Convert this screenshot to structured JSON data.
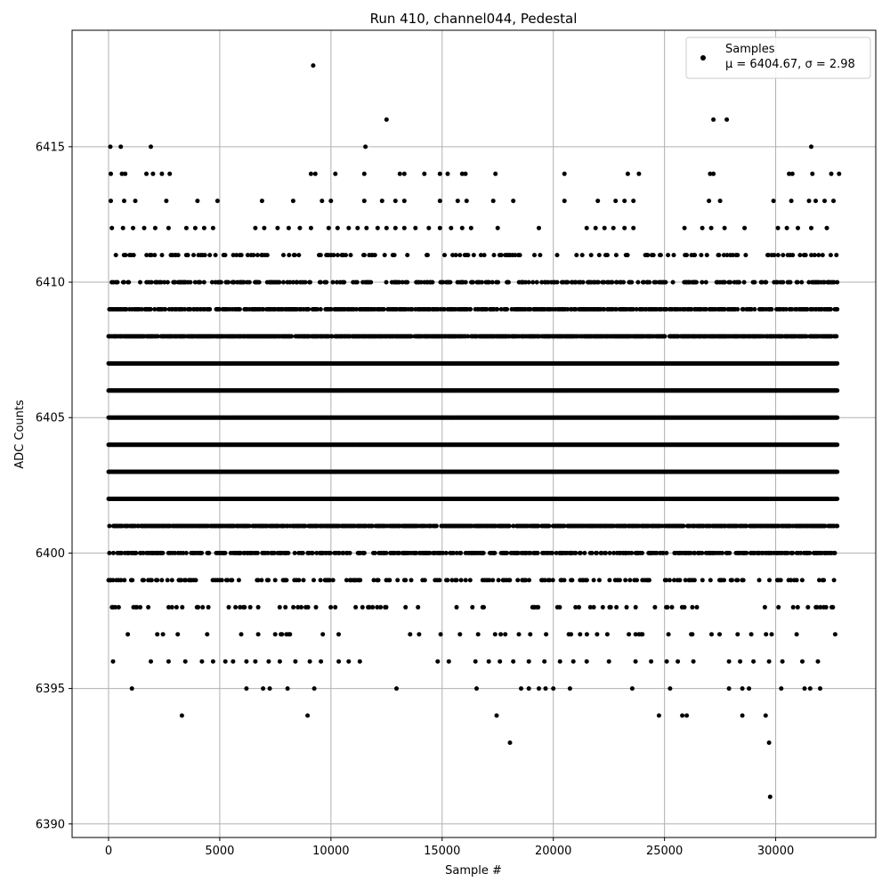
{
  "chart_data": {
    "type": "scatter",
    "title": "Run 410, channel044, Pedestal",
    "xlabel": "Sample #",
    "ylabel": "ADC Counts",
    "xlim": [
      -1640,
      34500
    ],
    "ylim": [
      6389.5,
      6419.3
    ],
    "xticks": [
      0,
      5000,
      10000,
      15000,
      20000,
      25000,
      30000
    ],
    "yticks": [
      6390,
      6395,
      6400,
      6405,
      6410,
      6415
    ],
    "grid": true,
    "legend_position": "top-right",
    "marker_color": "#000000",
    "series": [
      {
        "name": "Samples",
        "stats_label": "μ = 6404.67, σ = 2.98",
        "x_range": [
          0,
          32768
        ],
        "mean": 6404.67,
        "std": 2.98,
        "dense_levels": [
          6400,
          6401,
          6402,
          6403,
          6404,
          6405,
          6406,
          6407,
          6408,
          6409,
          6410,
          6411
        ],
        "sparse_levels": [
          {
            "y": 6396,
            "x": [
              200,
              1900,
              2700,
              3450,
              4200,
              4700,
              5250,
              5600,
              6200,
              6600,
              7200,
              7700,
              8400,
              9050,
              9550,
              10350,
              10800,
              11300,
              14800,
              15300,
              16500,
              17100,
              17600,
              18200,
              18900,
              19600,
              20300,
              20900,
              21500,
              22500,
              23700,
              24400,
              25100,
              25600,
              26300,
              27900,
              28400,
              29000,
              29700,
              30300,
              31200,
              31900
            ]
          },
          {
            "y": 6395,
            "x": [
              1050,
              6200,
              6950,
              7250,
              8050,
              9250,
              12950,
              16550,
              18550,
              18900,
              19350,
              19650,
              20000,
              20750,
              23550,
              25250,
              27900,
              28500,
              28800,
              30250,
              31300,
              31550,
              32000
            ]
          },
          {
            "y": 6394,
            "x": [
              3300,
              8950,
              17450,
              24750,
              25800,
              26000,
              28500,
              29550
            ]
          },
          {
            "y": 6393,
            "x": [
              18050,
              29700
            ]
          },
          {
            "y": 6391,
            "x": [
              29750
            ]
          },
          {
            "y": 6412,
            "x": [
              150,
              650,
              1100,
              1600,
              2100,
              2700,
              3500,
              3900,
              4300,
              4700,
              6600,
              7000,
              7600,
              8100,
              8600,
              9100,
              9900,
              10300,
              10800,
              11200,
              11600,
              12100,
              12500,
              12900,
              13300,
              13800,
              14400,
              14900,
              15400,
              15900,
              16300,
              17500,
              19350,
              21500,
              21900,
              22300,
              22700,
              23200,
              23600,
              25900,
              26700,
              27100,
              27700,
              28600,
              30100,
              30500,
              31000,
              31600,
              32300
            ]
          },
          {
            "y": 6413,
            "x": [
              100,
              700,
              1200,
              2600,
              4000,
              4900,
              6900,
              8300,
              9600,
              10000,
              11500,
              12300,
              12900,
              13300,
              14900,
              15700,
              16100,
              17300,
              18200,
              20500,
              22000,
              22800,
              23200,
              23600,
              27000,
              27500,
              29900,
              30700,
              31500,
              31800,
              32200,
              32600
            ]
          },
          {
            "y": 6414,
            "x": [
              100,
              600,
              750,
              1700,
              2000,
              2400,
              2750,
              9100,
              9300,
              10200,
              11500,
              13100,
              13300,
              14200,
              14900,
              15250,
              15900,
              16050,
              17400,
              20500,
              23350,
              23850,
              27050,
              27200,
              30600,
              30750,
              31650,
              32500,
              32850
            ]
          },
          {
            "y": 6415,
            "x": [
              80,
              550,
              1900,
              11550,
              31600
            ]
          },
          {
            "y": 6416,
            "x": [
              12500,
              27200,
              27800
            ]
          },
          {
            "y": 6418,
            "x": [
              9200
            ]
          }
        ]
      }
    ]
  }
}
